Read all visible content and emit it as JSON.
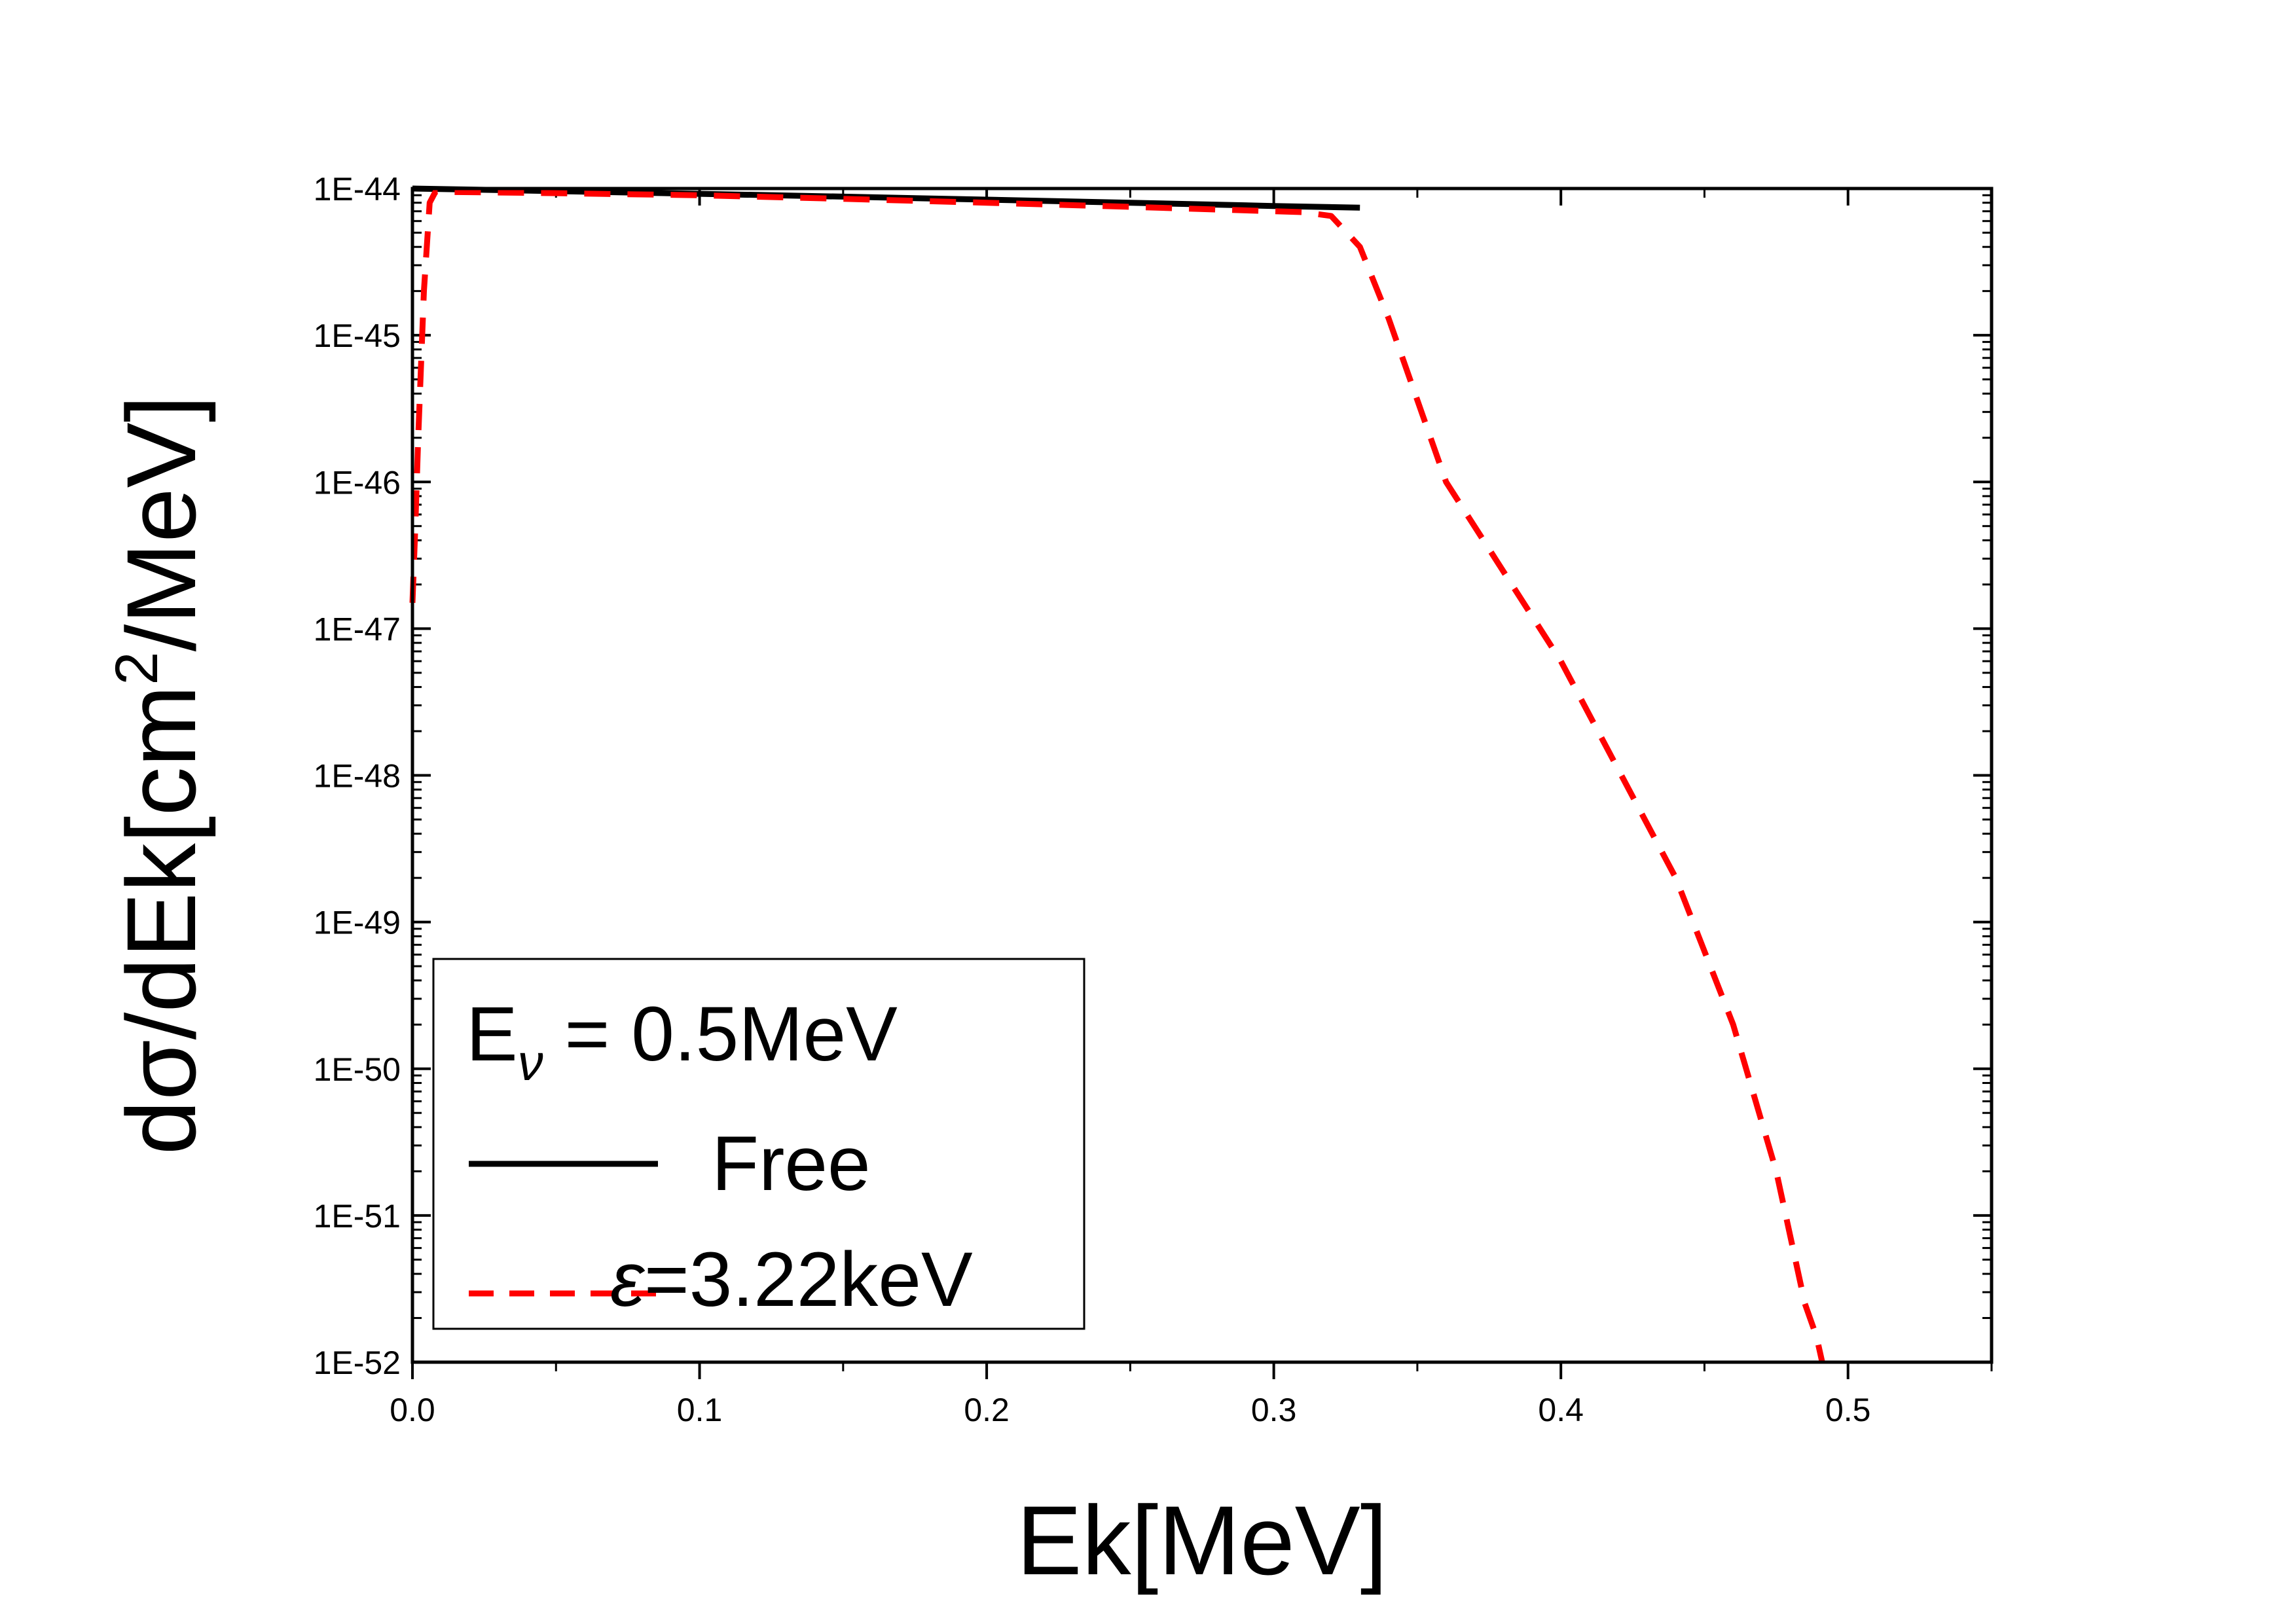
{
  "chart_data": {
    "type": "line",
    "xlabel": "Ek[MeV]",
    "ylabel": {
      "before": "dσ/dEk[cm",
      "sup": "2",
      "after": "/MeV]"
    },
    "xlim": [
      0.0,
      0.55
    ],
    "ylim": [
      1e-52,
      1e-44
    ],
    "yscale": "log",
    "grid": false,
    "legend_position": "bottom-left",
    "x_ticks": [
      {
        "value": 0.0,
        "label": "0.0"
      },
      {
        "value": 0.1,
        "label": "0.1"
      },
      {
        "value": 0.2,
        "label": "0.2"
      },
      {
        "value": 0.3,
        "label": "0.3"
      },
      {
        "value": 0.4,
        "label": "0.4"
      },
      {
        "value": 0.5,
        "label": "0.5"
      }
    ],
    "y_ticks": [
      {
        "value": 1e-44,
        "label": "1E-44"
      },
      {
        "value": 1e-45,
        "label": "1E-45"
      },
      {
        "value": 1e-46,
        "label": "1E-46"
      },
      {
        "value": 1e-47,
        "label": "1E-47"
      },
      {
        "value": 1e-48,
        "label": "1E-48"
      },
      {
        "value": 1e-49,
        "label": "1E-49"
      },
      {
        "value": 1e-50,
        "label": "1E-50"
      },
      {
        "value": 1e-51,
        "label": "1E-51"
      },
      {
        "value": 1e-52,
        "label": "1E-52"
      }
    ],
    "legend_header": {
      "main": "E",
      "sub": "ν",
      "rest": " = 0.5MeV"
    },
    "series": [
      {
        "name": "Free",
        "color": "#000000",
        "style": "solid",
        "x": [
          0.0,
          0.05,
          0.1,
          0.15,
          0.2,
          0.25,
          0.3,
          0.33
        ],
        "y": [
          1e-44,
          9.6e-45,
          9.2e-45,
          8.8e-45,
          8.4e-45,
          8e-45,
          7.6e-45,
          7.4e-45
        ]
      },
      {
        "name": "ε=3.22keV",
        "name_parts": {
          "symbol": "ε",
          "rest": "=3.22keV"
        },
        "color": "#ff0000",
        "style": "dashed",
        "x": [
          0.0,
          0.001,
          0.002,
          0.004,
          0.006,
          0.008,
          0.05,
          0.1,
          0.15,
          0.2,
          0.25,
          0.3,
          0.31,
          0.32,
          0.33,
          0.34,
          0.36,
          0.4,
          0.44,
          0.46,
          0.475,
          0.485,
          0.489,
          0.491
        ],
        "y": [
          1.5e-47,
          5e-47,
          2e-46,
          2e-45,
          8e-45,
          9.5e-45,
          9.3e-45,
          9e-45,
          8.5e-45,
          8e-45,
          7.5e-45,
          7e-45,
          6.9e-45,
          6.5e-45,
          4e-45,
          1.3e-45,
          1e-46,
          6e-48,
          2e-49,
          2e-50,
          2e-51,
          2.5e-52,
          1.5e-52,
          1e-52
        ]
      }
    ]
  }
}
